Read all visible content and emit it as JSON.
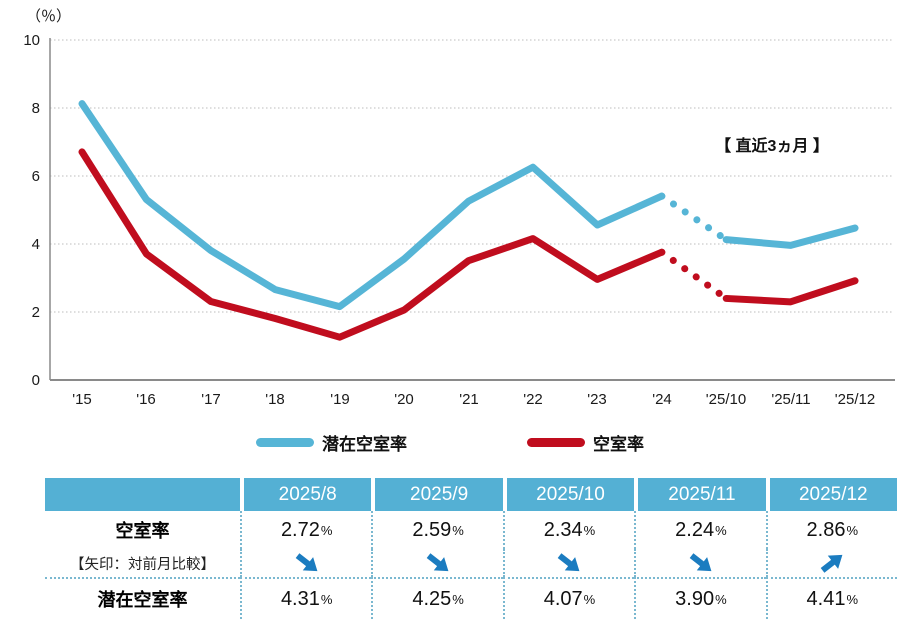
{
  "chart": {
    "y_axis_unit": "（％）",
    "annotation": "【 直近3ヵ月 】",
    "y_tick_labels": [
      "0",
      "2",
      "4",
      "6",
      "8",
      "10"
    ]
  },
  "chart_data": {
    "type": "line",
    "x": [
      "'15",
      "'16",
      "'17",
      "'18",
      "'19",
      "'20",
      "'21",
      "'22",
      "'23",
      "'24",
      "'25/10",
      "'25/11",
      "'25/12"
    ],
    "series": [
      {
        "name": "潜在空室率",
        "color": "#56b5d6",
        "values": [
          8.07,
          5.25,
          3.75,
          2.6,
          2.1,
          3.5,
          5.2,
          6.2,
          4.5,
          5.35,
          4.07,
          3.9,
          4.41
        ]
      },
      {
        "name": "空室率",
        "color": "#c00d1e",
        "values": [
          6.65,
          3.65,
          2.25,
          1.75,
          1.2,
          2.0,
          3.45,
          4.1,
          2.9,
          3.7,
          2.34,
          2.24,
          2.86
        ]
      }
    ],
    "dotted_segment": [
      9,
      10
    ],
    "dotted_note": "直近3ヵ月（'24から'25/10の区間は点線）",
    "ylim": [
      0,
      10
    ],
    "ylabel": "（％）",
    "grid": true,
    "legend_position": "bottom",
    "legend": [
      {
        "label": "潜在空室率",
        "color": "#56b5d6"
      },
      {
        "label": "空室率",
        "color": "#c00d1e"
      }
    ],
    "annotation": "【 直近3ヵ月 】"
  },
  "table": {
    "percent": "%",
    "row_labels": {
      "vacancy": "空室率",
      "arrow_note": "【矢印：対前月比較】",
      "potential": "潜在空室率"
    },
    "columns": [
      {
        "header": "2025/8",
        "vacancy": "2.72",
        "arrow": "down",
        "potential": "4.31"
      },
      {
        "header": "2025/9",
        "vacancy": "2.59",
        "arrow": "down",
        "potential": "4.25"
      },
      {
        "header": "2025/10",
        "vacancy": "2.34",
        "arrow": "down",
        "potential": "4.07"
      },
      {
        "header": "2025/11",
        "vacancy": "2.24",
        "arrow": "down",
        "potential": "3.90"
      },
      {
        "header": "2025/12",
        "vacancy": "2.86",
        "arrow": "up",
        "potential": "4.41"
      }
    ],
    "arrow_color": "#1b7cc0"
  }
}
